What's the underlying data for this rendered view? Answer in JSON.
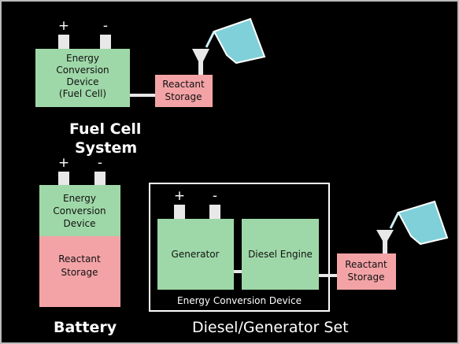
{
  "fuel_cell_system": {
    "title": [
      "Fuel Cell",
      "System"
    ],
    "plus": "+",
    "minus": "-",
    "device": [
      "Energy",
      "Conversion",
      "Device",
      "(Fuel Cell)"
    ],
    "storage": [
      "Reactant",
      "Storage"
    ]
  },
  "battery": {
    "title": "Battery",
    "plus": "+",
    "minus": "-",
    "device": [
      "Energy",
      "Conversion",
      "Device"
    ],
    "storage": [
      "Reactant",
      "Storage"
    ]
  },
  "diesel_generator_set": {
    "title": "Diesel/Generator Set",
    "plus": "+",
    "minus": "-",
    "generator": "Generator",
    "engine": "Diesel Engine",
    "device": "Energy Conversion Device",
    "storage": [
      "Reactant",
      "Storage"
    ]
  }
}
